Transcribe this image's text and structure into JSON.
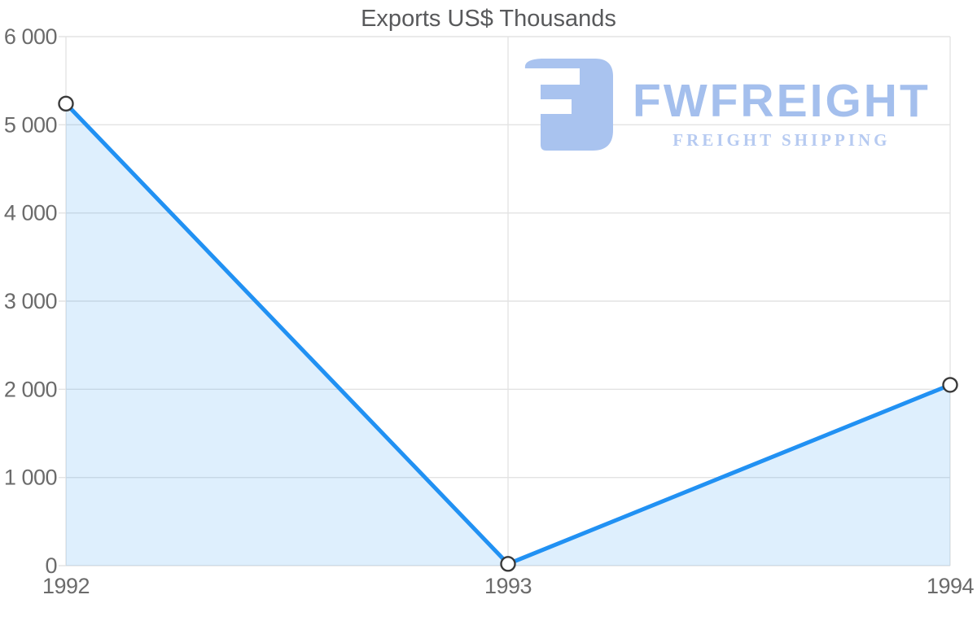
{
  "chart_data": {
    "type": "area",
    "title": "Exports US$ Thousands",
    "xlabel": "",
    "ylabel": "",
    "categories": [
      "1992",
      "1993",
      "1994"
    ],
    "series": [
      {
        "name": "Exports",
        "values": [
          5240,
          20,
          2050
        ]
      }
    ],
    "ylim": [
      0,
      6000
    ],
    "ytick_step": 1000,
    "ytick_labels": [
      "0",
      "1 000",
      "2 000",
      "3 000",
      "4 000",
      "5 000",
      "6 000"
    ],
    "grid": true,
    "legend": "none",
    "colors": {
      "line": "#2191f3",
      "fill": "rgba(33,145,243,0.15)",
      "marker_fill": "#ffffff",
      "marker_stroke": "#3a3a3a",
      "gridline": "#e3e3e3",
      "axis_label": "#6b6b6b",
      "title": "#58595b"
    }
  },
  "watermark": {
    "brand": "FWFREIGHT",
    "tagline": "FREIGHT SHIPPING",
    "logo_icon": "fwfreight-logo-icon",
    "colors": {
      "mark": "#a9c3ef",
      "brand": "#a4bfed",
      "tagline": "#b6caf1"
    }
  }
}
